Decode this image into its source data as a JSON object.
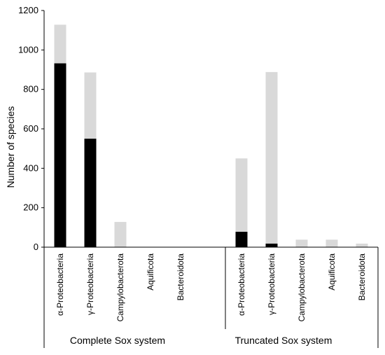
{
  "chart_data": {
    "type": "bar",
    "stacked": true,
    "ylabel": "Number of species",
    "ylim": [
      0,
      1200
    ],
    "yticks": [
      0,
      200,
      400,
      600,
      800,
      1000,
      1200
    ],
    "grid": false,
    "legend": "none",
    "groups": [
      {
        "label": "Complete Sox system",
        "categories": [
          "α-Proteobacteria",
          "γ-Proteobacteria",
          "Campylobacterota",
          "Aquificota",
          "Bacteroidota"
        ],
        "black_values": [
          932,
          550,
          0,
          0,
          0
        ],
        "totals": [
          1128,
          886,
          128,
          0,
          0
        ]
      },
      {
        "label": "Truncated Sox system",
        "categories": [
          "α-Proteobacteria",
          "γ-Proteobacteria",
          "Campylobacterota",
          "Aquificota",
          "Bacteroidota"
        ],
        "black_values": [
          78,
          18,
          0,
          0,
          0
        ],
        "totals": [
          450,
          888,
          38,
          38,
          18
        ]
      }
    ],
    "colors": {
      "black": "#000000",
      "grey": "#d9d9d9",
      "axis": "#000000"
    }
  }
}
